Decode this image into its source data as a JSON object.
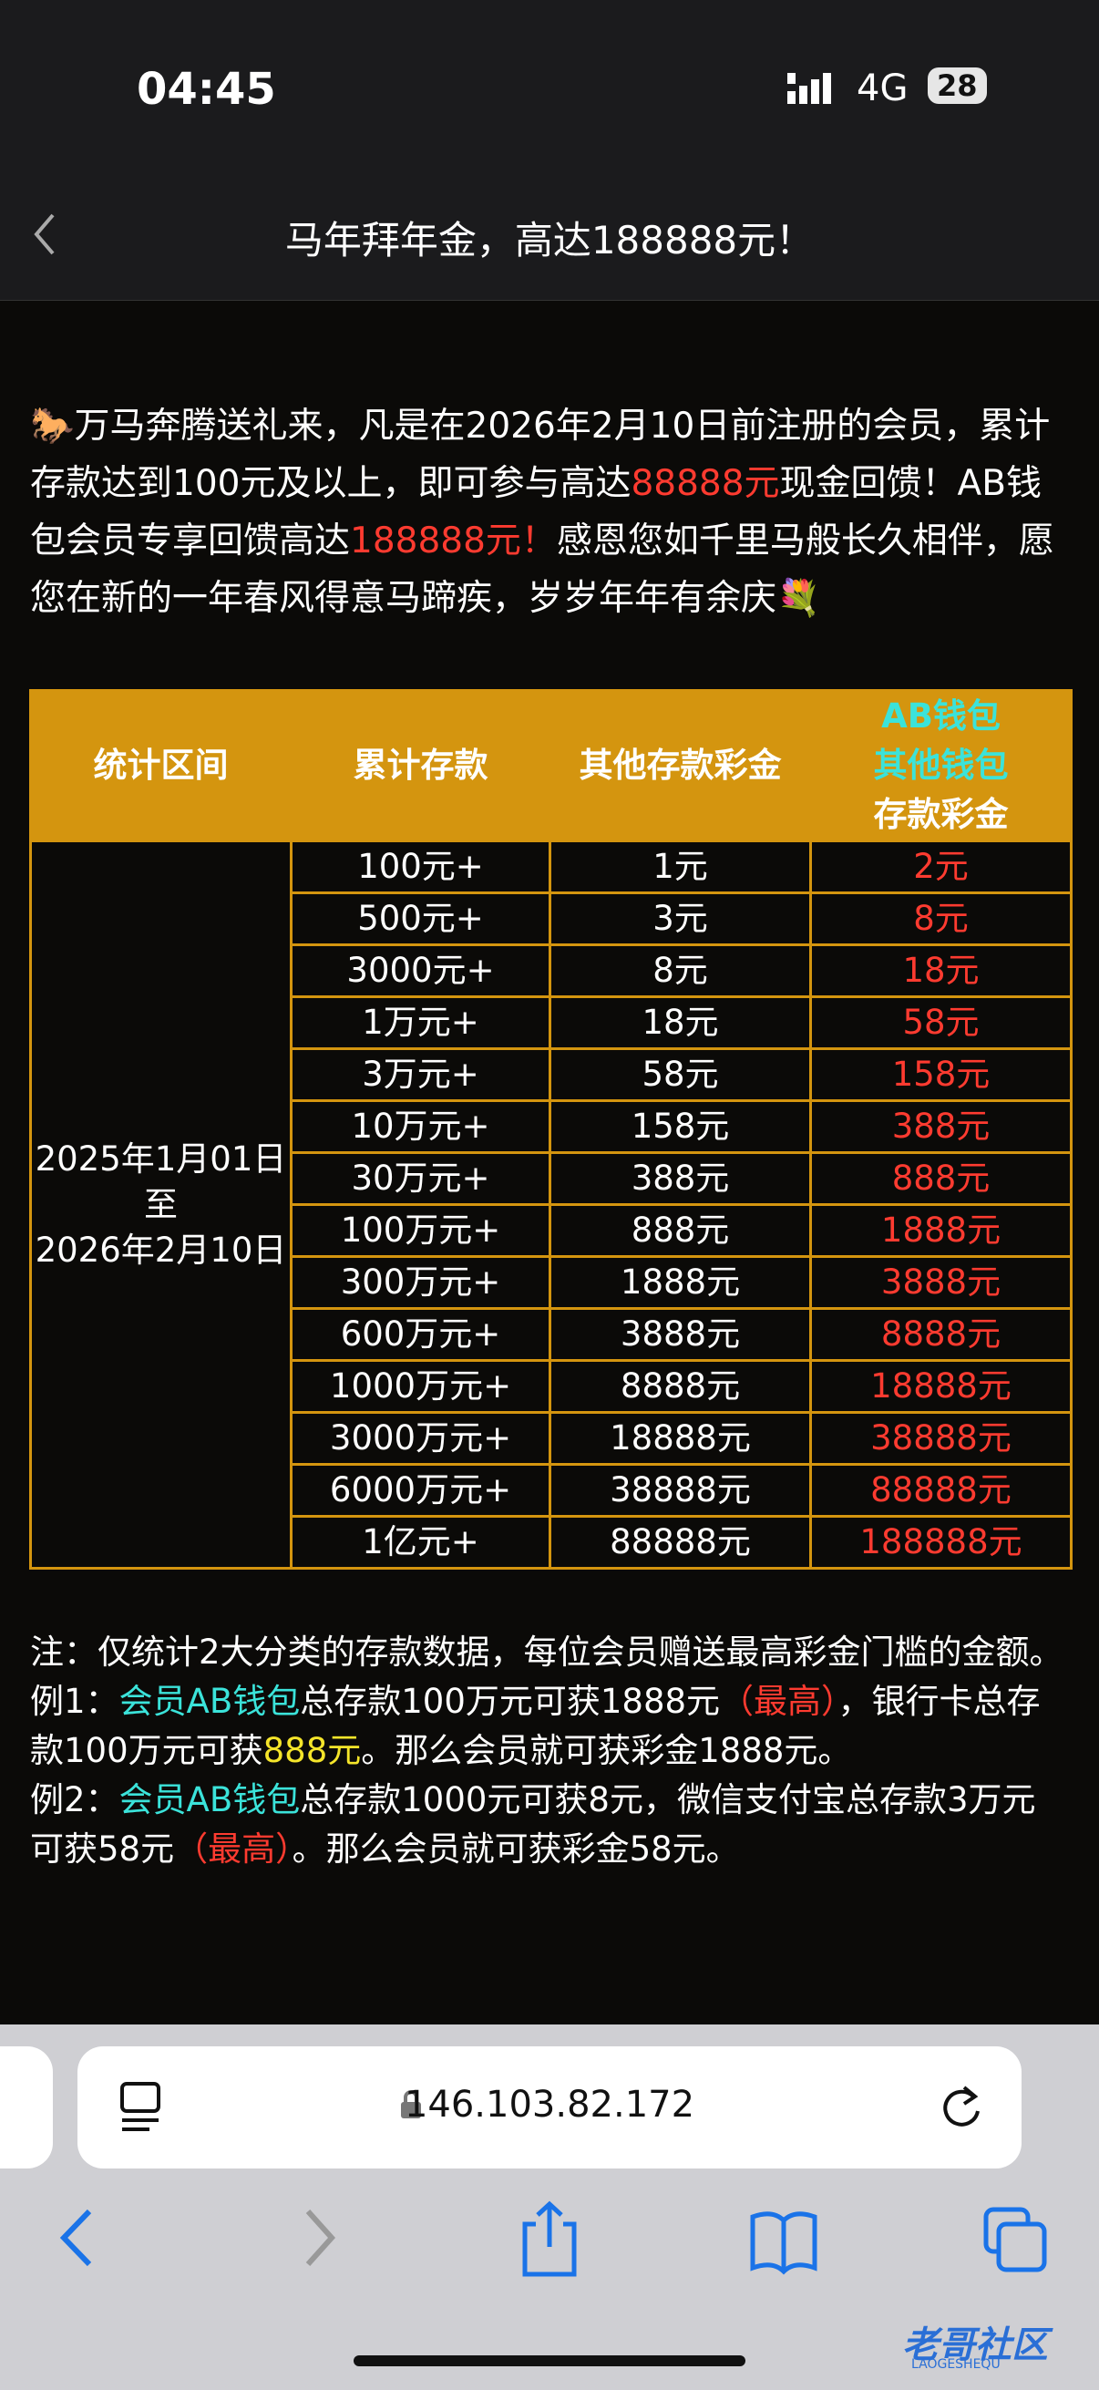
{
  "status": {
    "time": "04:45",
    "network": "4G",
    "battery": "28"
  },
  "nav": {
    "title": "马年拜年金，高达188888元！"
  },
  "intro": [
    {
      "text": "🐎万马奔腾送礼来，凡是在2026年2月10日前注册的会员，累计存款达到100元及以上，即可参与高达",
      "color": "white"
    },
    {
      "text": "88888元",
      "color": "red"
    },
    {
      "text": "现金回馈！AB钱包会员专享回馈高达",
      "color": "white"
    },
    {
      "text": "188888元！",
      "color": "red"
    },
    {
      "text": "感恩您如千里马般长久相伴，愿您在新的一年春风得意马蹄疾，岁岁年年有余庆💐",
      "color": "white"
    }
  ],
  "table": {
    "headers": [
      "统计区间",
      "累计存款",
      "其他存款彩金"
    ],
    "header4": [
      {
        "text": "AB钱包",
        "color": "cyan"
      },
      {
        "text": "其他钱包",
        "color": "cyan"
      },
      {
        "text": "存款彩金",
        "color": "white"
      }
    ],
    "period": [
      "2025年1月01日",
      "至",
      "2026年2月10日"
    ],
    "rows": [
      [
        "100元+",
        "1元",
        "2元"
      ],
      [
        "500元+",
        "3元",
        "8元"
      ],
      [
        "3000元+",
        "8元",
        "18元"
      ],
      [
        "1万元+",
        "18元",
        "58元"
      ],
      [
        "3万元+",
        "58元",
        "158元"
      ],
      [
        "10万元+",
        "158元",
        "388元"
      ],
      [
        "30万元+",
        "388元",
        "888元"
      ],
      [
        "100万元+",
        "888元",
        "1888元"
      ],
      [
        "300万元+",
        "1888元",
        "3888元"
      ],
      [
        "600万元+",
        "3888元",
        "8888元"
      ],
      [
        "1000万元+",
        "8888元",
        "18888元"
      ],
      [
        "3000万元+",
        "18888元",
        "38888元"
      ],
      [
        "6000万元+",
        "38888元",
        "88888元"
      ],
      [
        "1亿元+",
        "88888元",
        "188888元"
      ]
    ]
  },
  "notes": [
    [
      {
        "text": "注：仅统计2大分类的存款数据，每位会员赠送最高彩金门槛的金额。",
        "color": "white"
      }
    ],
    [
      {
        "text": "例1：",
        "color": "white"
      },
      {
        "text": "会员AB钱包",
        "color": "cyan"
      },
      {
        "text": "总存款100万元可获1888元",
        "color": "white"
      },
      {
        "text": "（最高）",
        "color": "red"
      },
      {
        "text": "，银行卡总存款100万元可获",
        "color": "white"
      },
      {
        "text": "888元",
        "color": "yellow"
      },
      {
        "text": "。那么会员就可获彩金1888元。",
        "color": "white"
      }
    ],
    [
      {
        "text": "例2：",
        "color": "white"
      },
      {
        "text": "会员AB钱包",
        "color": "cyan"
      },
      {
        "text": "总存款1000元可获8元，微信支付宝总存款3万元可获58元",
        "color": "white"
      },
      {
        "text": "（最高）",
        "color": "red"
      },
      {
        "text": "。那么会员就可获彩金58元。",
        "color": "white"
      }
    ]
  ],
  "browser": {
    "url": "146.103.82.172"
  },
  "watermark": {
    "text": "老哥社区",
    "sub": "LAOGESHEQU"
  }
}
